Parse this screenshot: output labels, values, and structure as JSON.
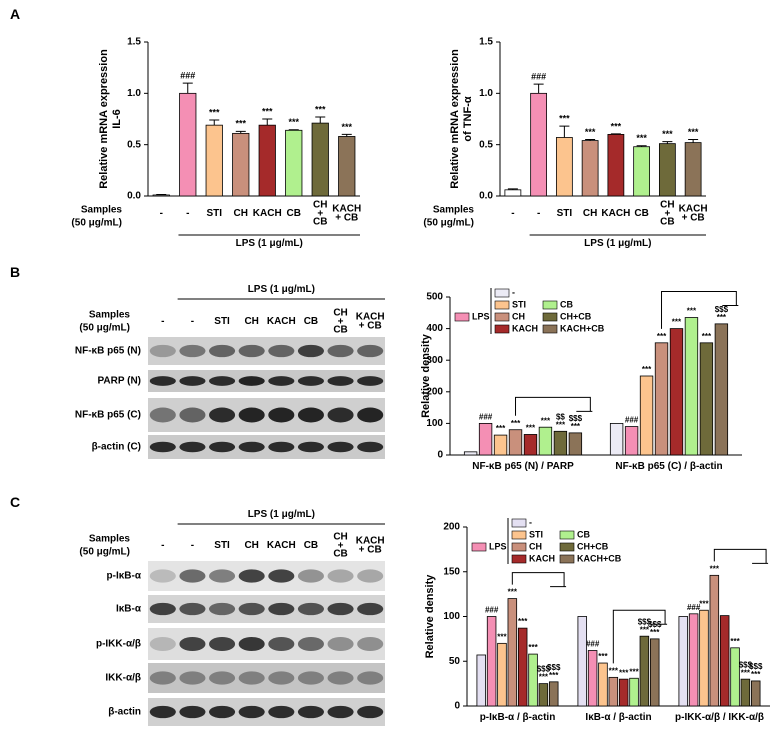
{
  "panel_labels": [
    "A",
    "B",
    "C"
  ],
  "chart_data": [
    {
      "type": "bar",
      "ylabel": [
        "Relative mRNA expression",
        "IL-6"
      ],
      "categories": [
        "-",
        "-",
        "STI",
        "CH",
        "KACH",
        "CB",
        "CH + CB",
        "KACH + CB"
      ],
      "values": [
        0.01,
        1.0,
        0.69,
        0.61,
        0.69,
        0.64,
        0.71,
        0.58
      ],
      "errors": [
        0.005,
        0.1,
        0.05,
        0.02,
        0.06,
        0.005,
        0.06,
        0.02
      ],
      "colors": [
        "#ffffff",
        "#f48fb4",
        "#fcc48e",
        "#c9907c",
        "#a52a2a",
        "#b0f08e",
        "#6e6a3a",
        "#8b7358"
      ],
      "annotations": [
        null,
        "###",
        "***",
        "***",
        "***",
        "***",
        "***",
        "***"
      ],
      "ylim": [
        0,
        1.5
      ],
      "yticks": [
        {
          "value": 0,
          "label": "0.0"
        },
        0.5,
        {
          "value": 1,
          "label": "1.0"
        },
        1.5
      ],
      "samples_label": [
        "Samples",
        "(50 μg/mL)"
      ],
      "condition_label": "LPS (1 μg/mL)"
    },
    {
      "type": "bar",
      "ylabel": [
        "Relative mRNA expression",
        "of TNF-α"
      ],
      "categories": [
        "-",
        "-",
        "STI",
        "CH",
        "KACH",
        "CB",
        "CH + CB",
        "KACH + CB"
      ],
      "values": [
        0.06,
        1.0,
        0.57,
        0.54,
        0.6,
        0.48,
        0.51,
        0.52
      ],
      "errors": [
        0.01,
        0.09,
        0.11,
        0.01,
        0.005,
        0.01,
        0.02,
        0.03
      ],
      "colors": [
        "#ffffff",
        "#f48fb4",
        "#fcc48e",
        "#c9907c",
        "#a52a2a",
        "#b0f08e",
        "#6e6a3a",
        "#8b7358"
      ],
      "annotations": [
        null,
        "###",
        "***",
        "***",
        "***",
        "***",
        "***",
        "***"
      ],
      "ylim": [
        0,
        1.5
      ],
      "yticks": [
        {
          "value": 0,
          "label": "0.0"
        },
        0.5,
        {
          "value": 1,
          "label": "1.0"
        },
        1.5
      ],
      "samples_label": [
        "Samples",
        "(50 μg/mL)"
      ],
      "condition_label": "LPS (1 μg/mL)"
    },
    {
      "type": "grouped_bar",
      "ylabel": [
        "Relative density"
      ],
      "categories": [
        "NF-κB p65 (N) / PARP",
        "NF-κB p65 (C) / β-actin"
      ],
      "series": [
        {
          "name": "-",
          "color": "#ecebf5",
          "values": [
            10,
            100
          ],
          "annotations": [
            null,
            null
          ]
        },
        {
          "name": "LPS",
          "color": "#f48fb4",
          "values": [
            100,
            90
          ],
          "annotations": [
            "###",
            "###"
          ]
        },
        {
          "name": "STI",
          "color": "#fcc48e",
          "values": [
            63,
            250
          ],
          "annotations": [
            "***",
            "***"
          ]
        },
        {
          "name": "CH",
          "color": "#c9907c",
          "values": [
            80,
            355
          ],
          "annotations": [
            "***",
            "***"
          ]
        },
        {
          "name": "KACH",
          "color": "#a52a2a",
          "values": [
            65,
            400
          ],
          "annotations": [
            "***",
            "***"
          ]
        },
        {
          "name": "CB",
          "color": "#b0f08e",
          "values": [
            88,
            435
          ],
          "annotations": [
            "***",
            "***"
          ]
        },
        {
          "name": "CH+CB",
          "color": "#6e6a3a",
          "values": [
            75,
            355
          ],
          "annotations": [
            [
              "$$",
              "***"
            ],
            "***"
          ]
        },
        {
          "name": "KACH+CB",
          "color": "#8b7358",
          "values": [
            70,
            415
          ],
          "annotations": [
            [
              "$$$",
              "***"
            ],
            [
              "$$$",
              "***"
            ]
          ]
        }
      ],
      "ylim": [
        0,
        500
      ],
      "yticks": [
        0,
        100,
        200,
        300,
        400,
        500
      ]
    },
    {
      "type": "grouped_bar",
      "ylabel": [
        "Relative density"
      ],
      "categories": [
        "p-IκB-α / β-actin",
        "IκB-α / β-actin",
        "p-IKK-α/β / IKK-α/β"
      ],
      "series": [
        {
          "name": "-",
          "color": "#e4e0f2",
          "values": [
            57,
            100,
            100
          ],
          "annotations": [
            null,
            null,
            null
          ]
        },
        {
          "name": "LPS",
          "color": "#f48fb4",
          "values": [
            100,
            62,
            103
          ],
          "annotations": [
            "###",
            "###",
            "###"
          ]
        },
        {
          "name": "STI",
          "color": "#fcc48e",
          "values": [
            70,
            48,
            107
          ],
          "annotations": [
            "***",
            "***",
            "***"
          ]
        },
        {
          "name": "CH",
          "color": "#c9907c",
          "values": [
            120,
            32,
            146
          ],
          "annotations": [
            "***",
            "***",
            "***"
          ]
        },
        {
          "name": "KACH",
          "color": "#a52a2a",
          "values": [
            87,
            30,
            101
          ],
          "annotations": [
            "***",
            "***",
            null
          ]
        },
        {
          "name": "CB",
          "color": "#b0f08e",
          "values": [
            58,
            31,
            65
          ],
          "annotations": [
            "***",
            "***",
            "***"
          ]
        },
        {
          "name": "CH+CB",
          "color": "#6e6a3a",
          "values": [
            25,
            78,
            30
          ],
          "annotations": [
            [
              "$$$",
              "***"
            ],
            [
              "$$$",
              "***"
            ],
            [
              "$$$",
              "***"
            ]
          ]
        },
        {
          "name": "KACH+CB",
          "color": "#8b7358",
          "values": [
            27,
            75,
            28
          ],
          "annotations": [
            [
              "$$$",
              "***"
            ],
            [
              "$$$",
              "***"
            ],
            [
              "$$$",
              "***"
            ]
          ]
        }
      ],
      "ylim": [
        0,
        200
      ],
      "yticks": [
        0,
        50,
        100,
        150,
        200
      ]
    }
  ],
  "blots": [
    {
      "samples_label": [
        "Samples",
        "(50 μg/mL)"
      ],
      "condition_label": "LPS (1 μg/mL)",
      "lanes": [
        "-",
        "-",
        "STI",
        "CH",
        "KACH",
        "CB",
        "CH + CB",
        "KACH + CB"
      ],
      "rows": [
        "NF-κB p65 (N)",
        "PARP (N)",
        "NF-κB p65 (C)",
        "β-actin (C)"
      ]
    },
    {
      "samples_label": [
        "Samples",
        "(50 μg/mL)"
      ],
      "condition_label": "LPS (1 μg/mL)",
      "lanes": [
        "-",
        "-",
        "STI",
        "CH",
        "KACH",
        "CB",
        "CH + CB",
        "KACH + CB"
      ],
      "rows": [
        "p-IκB-α",
        "IκB-α",
        "p-IKK-α/β",
        "IKK-α/β",
        "β-actin"
      ]
    }
  ]
}
